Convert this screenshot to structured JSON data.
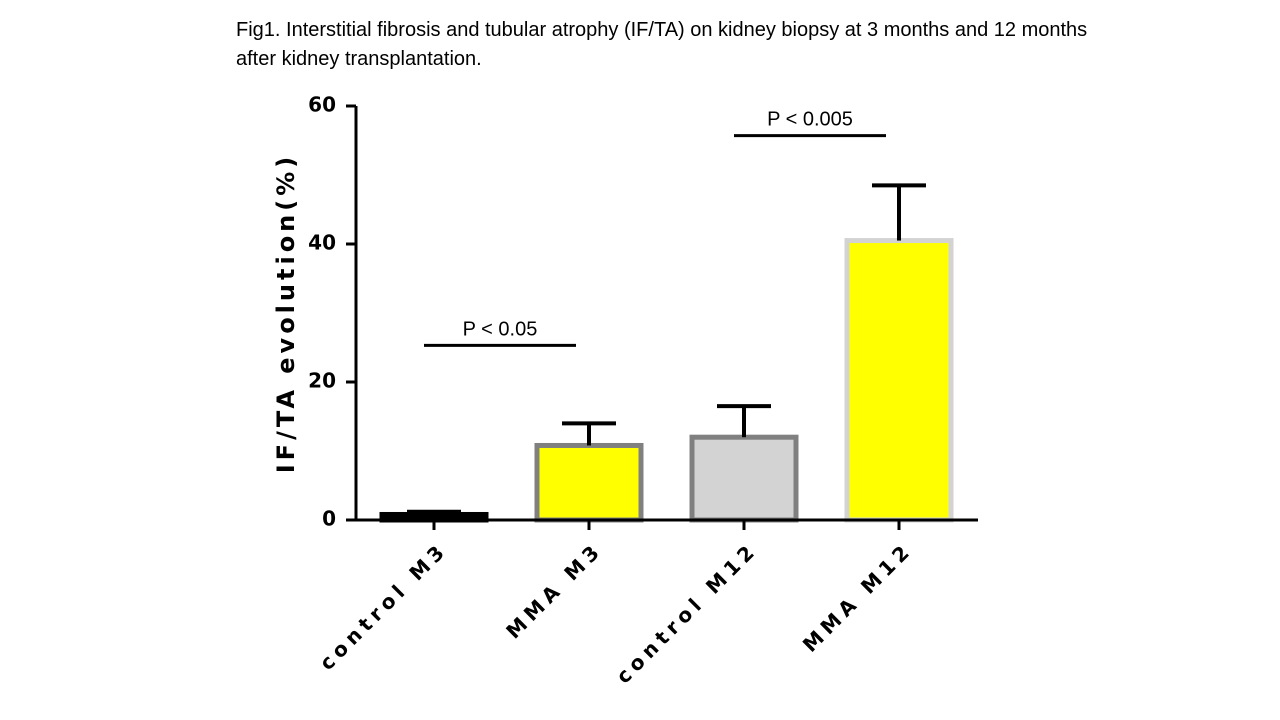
{
  "caption": "Fig1. Interstitial fibrosis and tubular atrophy (IF/TA)  on kidney biopsy at 3 months and 12 months\nafter kidney transplantation.",
  "chart_data": {
    "type": "bar",
    "title": "",
    "ylabel": "IF/TA evolution(%)",
    "xlabel": "",
    "ylim": [
      0,
      60
    ],
    "yticks": [
      0,
      20,
      40,
      60
    ],
    "categories": [
      "control M3",
      "MMA M3",
      "control M12",
      "MMA M12"
    ],
    "values": [
      0.8,
      10.8,
      12.0,
      40.5
    ],
    "error_upper": [
      1.2,
      14.0,
      16.5,
      48.5
    ],
    "bar_fill": [
      "#000000",
      "#ffff00",
      "#d3d3d3",
      "#ffff00"
    ],
    "bar_stroke": [
      "#000000",
      "#808080",
      "#808080",
      "#d3d3d3"
    ],
    "annotations": [
      {
        "label": "P < 0.05",
        "from": 0,
        "to": 1,
        "y": 25.3
      },
      {
        "label": "P < 0.005",
        "from": 2,
        "to": 3,
        "y": 55.7
      }
    ],
    "grid": false,
    "legend": "none"
  }
}
